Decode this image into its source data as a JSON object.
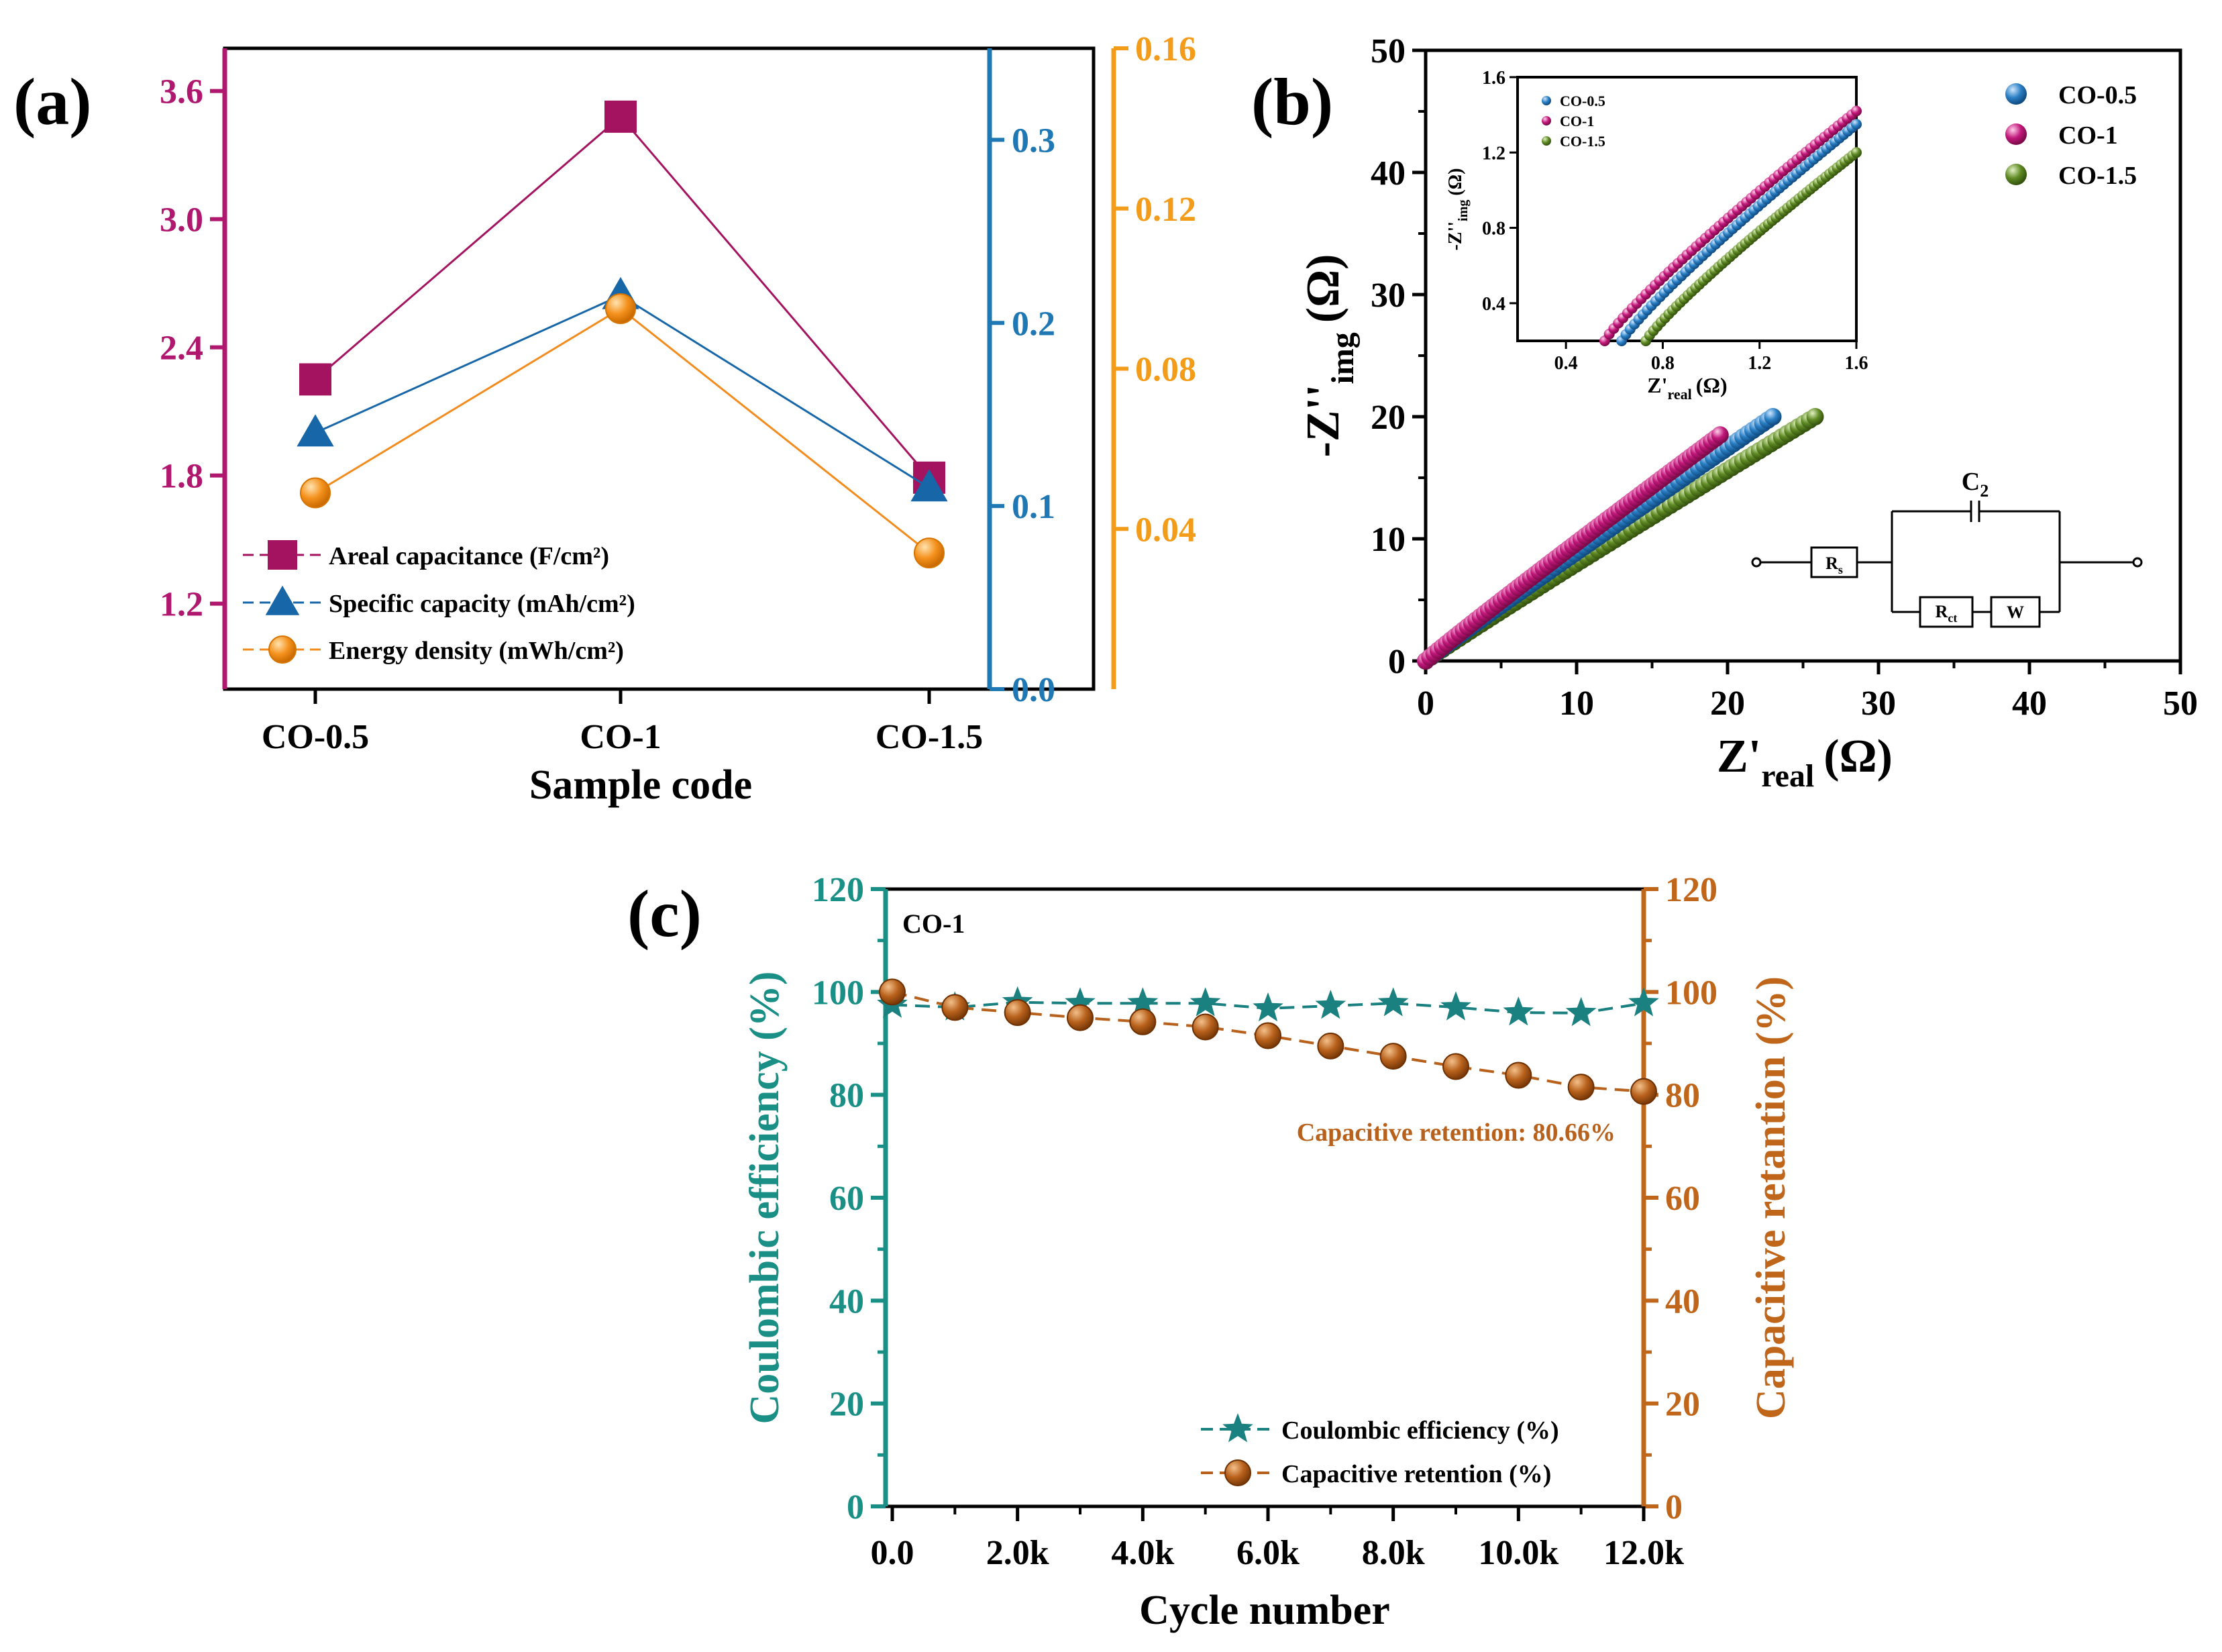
{
  "chart_data": [
    {
      "panel": "(a)",
      "type": "line",
      "xlabel": "Sample code",
      "categories": [
        "CO-0.5",
        "CO-1",
        "CO-1.5"
      ],
      "axes": {
        "left": {
          "range": [
            0.8,
            3.8
          ],
          "ticks": [
            "1.2",
            "1.8",
            "2.4",
            "3.0",
            "3.6"
          ],
          "color": "#b0176e"
        },
        "right1": {
          "range": [
            0.0,
            0.35
          ],
          "ticks": [
            "0.0",
            "0.1",
            "0.2",
            "0.3"
          ],
          "color": "#1f78b4"
        },
        "right2": {
          "range": [
            0.0,
            0.16
          ],
          "ticks": [
            "0.04",
            "0.08",
            "0.12",
            "0.16"
          ],
          "color": "#f39c1a"
        }
      },
      "series": [
        {
          "name": "Areal capacitance (F/cm²)",
          "axis": "left",
          "marker": "square",
          "color": "#a3135f",
          "values": [
            2.25,
            3.48,
            1.79
          ]
        },
        {
          "name": "Specific capacity (mAh/cm²)",
          "axis": "right1",
          "marker": "triangle",
          "color": "#1666a8",
          "values": [
            0.14,
            0.215,
            0.11
          ]
        },
        {
          "name": "Energy density (mWh/cm²)",
          "axis": "right2",
          "marker": "circle",
          "color": "#f28c1e",
          "values": [
            0.049,
            0.095,
            0.034
          ]
        }
      ]
    },
    {
      "panel": "(b)",
      "type": "scatter",
      "xlabel_main": "Z'",
      "xlabel_sub": "real",
      "xlabel_unit": "(Ω)",
      "ylabel_main": "-Z''",
      "ylabel_sub": "img",
      "ylabel_unit": "(Ω)",
      "xlim": [
        0,
        50
      ],
      "ylim": [
        0,
        50
      ],
      "xticks": [
        "0",
        "10",
        "20",
        "30",
        "40",
        "50"
      ],
      "yticks": [
        "0",
        "10",
        "20",
        "30",
        "40",
        "50"
      ],
      "series": [
        {
          "name": "CO-0.5",
          "color": "#2a7fc4",
          "x_end": 23,
          "y_end": 20
        },
        {
          "name": "CO-1",
          "color": "#c2187b",
          "x_end": 19.5,
          "y_end": 18.5
        },
        {
          "name": "CO-1.5",
          "color": "#5f8a24",
          "x_end": 25.8,
          "y_end": 20
        }
      ],
      "inset": {
        "xlim": [
          0.2,
          1.6
        ],
        "ylim": [
          0.2,
          1.6
        ],
        "xticks": [
          "0.4",
          "0.8",
          "1.2",
          "1.6"
        ],
        "yticks": [
          "0.4",
          "0.8",
          "1.2",
          "1.6"
        ],
        "xlabel_main": "Z'",
        "xlabel_sub": "real",
        "xlabel_unit": "(Ω)",
        "ylabel_main": "-Z''",
        "ylabel_sub": "img",
        "ylabel_unit": "(Ω)",
        "series": [
          {
            "name": "CO-0.5",
            "color": "#2a7fc4",
            "x_start": 0.63,
            "y_start": 0.2,
            "x_end": 1.6,
            "y_end": 1.35
          },
          {
            "name": "CO-1",
            "color": "#c2187b",
            "x_start": 0.56,
            "y_start": 0.2,
            "x_end": 1.6,
            "y_end": 1.42
          },
          {
            "name": "CO-1.5",
            "color": "#5f8a24",
            "x_start": 0.73,
            "y_start": 0.2,
            "x_end": 1.6,
            "y_end": 1.2
          }
        ]
      },
      "circuit": {
        "rs": "R",
        "rs_sub": "s",
        "c2": "C",
        "c2_sub": "2",
        "rct": "R",
        "rct_sub": "ct",
        "w": "W"
      }
    },
    {
      "panel": "(c)",
      "type": "line",
      "annotation_sample": "CO-1",
      "annotation_text": "Capacitive retention: 80.66%",
      "xlabel": "Cycle number",
      "ylabel_left": "Coulombic efficiency (%)",
      "ylabel_right": "Capacitive retantion (%)",
      "xlim": [
        0,
        12000
      ],
      "ylim": [
        0,
        120
      ],
      "x": [
        0,
        1000,
        2000,
        3000,
        4000,
        5000,
        6000,
        7000,
        8000,
        9000,
        10000,
        11000,
        12000
      ],
      "xticks": [
        "0.0",
        "2.0k",
        "4.0k",
        "6.0k",
        "8.0k",
        "10.0k",
        "12.0k"
      ],
      "yticks": [
        "0",
        "20",
        "40",
        "60",
        "80",
        "100",
        "120"
      ],
      "left_color": "#1a8f86",
      "right_color": "#c0661a",
      "series": [
        {
          "name": "Coulombic efficiency (%)",
          "marker": "star",
          "color": "#1a8080",
          "values": [
            97.5,
            97,
            98,
            97.8,
            97.8,
            97.8,
            96.8,
            97.3,
            97.8,
            97,
            96,
            95.9,
            97.8
          ]
        },
        {
          "name": "Capacitive retention (%)",
          "marker": "circle",
          "color": "#b8611c",
          "values": [
            100,
            97,
            96,
            95,
            94.2,
            93.2,
            91.5,
            89.5,
            87.5,
            85.5,
            83.8,
            81.5,
            80.66
          ]
        }
      ]
    }
  ]
}
